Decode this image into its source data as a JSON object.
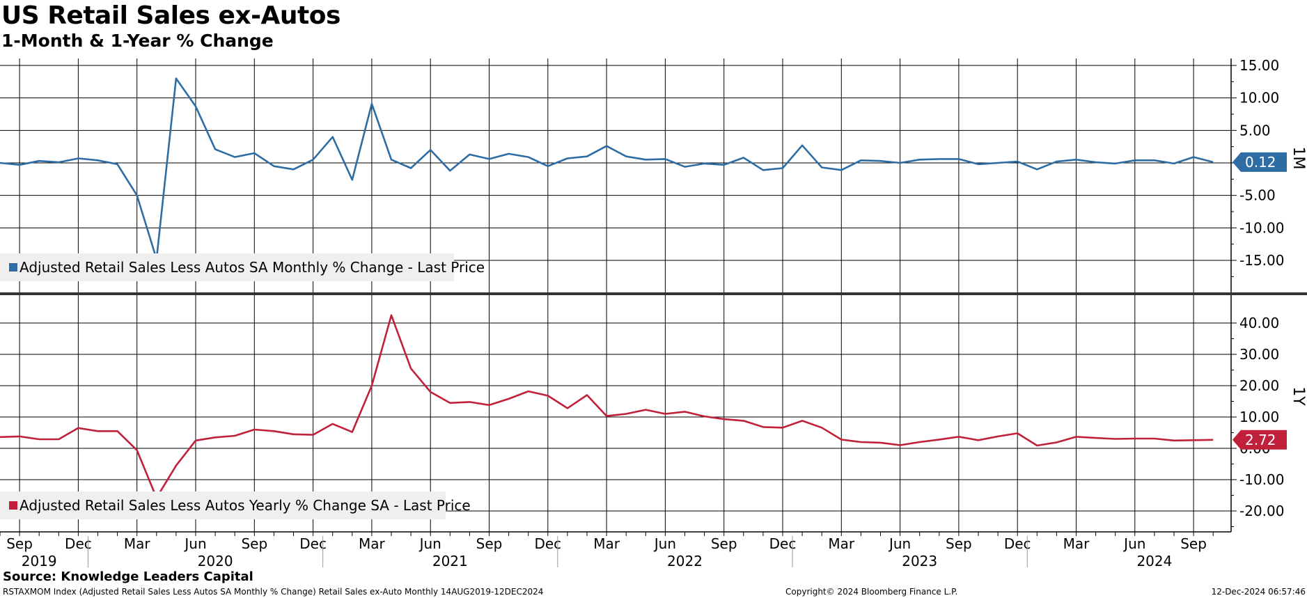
{
  "header": {
    "title": "US Retail Sales ex-Autos",
    "subtitle": "1-Month & 1-Year % Change"
  },
  "footer": {
    "source": "Source: Knowledge Leaders Capital",
    "description": "RSTAXMOM Index (Adjusted Retail Sales Less Autos SA Monthly % Change) Retail Sales ex-Auto  Monthly 14AUG2019-12DEC2024",
    "copyright": "Copyright© 2024 Bloomberg Finance L.P.",
    "timestamp": "12-Dec-2024 06:57:46"
  },
  "colors": {
    "monthly_series": "#2e6da4",
    "yearly_series": "#c0203a",
    "grid": "#000000",
    "legend_bg": "#efefef"
  },
  "chart_data": [
    {
      "type": "line",
      "panel_label": "1M",
      "title": "",
      "ylim": [
        -20,
        15
      ],
      "yticks": [
        "15.00",
        "10.00",
        "5.00",
        "",
        "-5.00",
        "-10.00",
        "-15.00"
      ],
      "ytick_values": [
        15,
        10,
        5,
        0,
        -5,
        -10,
        -15
      ],
      "grid": true,
      "legend_placement": "bottom-left",
      "last_value_label": "0.12",
      "series": [
        {
          "name": "Adjusted Retail Sales Less Autos SA Monthly % Change - Last Price",
          "x_start": "2019-08",
          "values": [
            0.0,
            -0.3,
            0.3,
            0.1,
            0.7,
            0.4,
            -0.2,
            -5.0,
            -14.8,
            13.0,
            8.7,
            2.1,
            0.9,
            1.5,
            -0.5,
            -1.0,
            0.5,
            4.0,
            -2.6,
            9.1,
            0.5,
            -0.8,
            2.0,
            -1.2,
            1.3,
            0.6,
            1.4,
            0.9,
            -0.5,
            0.7,
            1.0,
            2.6,
            1.0,
            0.5,
            0.6,
            -0.6,
            -0.1,
            -0.3,
            0.8,
            -1.1,
            -0.8,
            2.7,
            -0.7,
            -1.1,
            0.4,
            0.3,
            0.0,
            0.5,
            0.6,
            0.6,
            -0.2,
            0.0,
            0.2,
            -1.0,
            0.2,
            0.5,
            0.1,
            -0.1,
            0.4,
            0.4,
            -0.1,
            0.9,
            0.12
          ]
        }
      ]
    },
    {
      "type": "line",
      "panel_label": "1Y",
      "title": "",
      "ylim": [
        -25,
        45
      ],
      "yticks": [
        "40.00",
        "30.00",
        "20.00",
        "10.00",
        "0.00",
        "-10.00",
        "-20.00"
      ],
      "ytick_values": [
        40,
        30,
        20,
        10,
        0,
        -10,
        -20
      ],
      "grid": true,
      "legend_placement": "bottom-left",
      "last_value_label": "2.72",
      "series": [
        {
          "name": "Adjusted Retail Sales Less Autos Yearly % Change SA - Last Price",
          "x_start": "2019-08",
          "values": [
            3.6,
            3.8,
            2.9,
            2.9,
            6.5,
            5.5,
            5.5,
            -0.6,
            -15.8,
            -5.5,
            2.5,
            3.5,
            4.0,
            6.0,
            5.5,
            4.5,
            4.3,
            7.8,
            5.2,
            20.0,
            42.5,
            25.5,
            18.0,
            14.5,
            14.8,
            13.8,
            15.8,
            18.2,
            16.8,
            12.8,
            17.0,
            10.3,
            11.0,
            12.3,
            11.0,
            11.7,
            10.2,
            9.3,
            8.8,
            6.8,
            6.6,
            8.8,
            6.6,
            2.8,
            2.0,
            1.8,
            1.0,
            2.0,
            2.8,
            3.7,
            2.6,
            3.8,
            4.8,
            0.9,
            1.9,
            3.7,
            3.3,
            3.0,
            3.1,
            3.1,
            2.5,
            2.6,
            2.72
          ]
        }
      ]
    }
  ],
  "x_axis": {
    "month_ticks": [
      {
        "label": "Sep",
        "date": "2019-09"
      },
      {
        "label": "Dec",
        "date": "2019-12"
      },
      {
        "label": "Mar",
        "date": "2020-03"
      },
      {
        "label": "Jun",
        "date": "2020-06"
      },
      {
        "label": "Sep",
        "date": "2020-09"
      },
      {
        "label": "Dec",
        "date": "2020-12"
      },
      {
        "label": "Mar",
        "date": "2021-03"
      },
      {
        "label": "Jun",
        "date": "2021-06"
      },
      {
        "label": "Sep",
        "date": "2021-09"
      },
      {
        "label": "Dec",
        "date": "2021-12"
      },
      {
        "label": "Mar",
        "date": "2022-03"
      },
      {
        "label": "Jun",
        "date": "2022-06"
      },
      {
        "label": "Sep",
        "date": "2022-09"
      },
      {
        "label": "Dec",
        "date": "2022-12"
      },
      {
        "label": "Mar",
        "date": "2023-03"
      },
      {
        "label": "Jun",
        "date": "2023-06"
      },
      {
        "label": "Sep",
        "date": "2023-09"
      },
      {
        "label": "Dec",
        "date": "2023-12"
      },
      {
        "label": "Mar",
        "date": "2024-03"
      },
      {
        "label": "Jun",
        "date": "2024-06"
      },
      {
        "label": "Sep",
        "date": "2024-09"
      }
    ],
    "year_labels": [
      {
        "label": "2019",
        "date": "2019-10"
      },
      {
        "label": "2020",
        "date": "2020-07"
      },
      {
        "label": "2021",
        "date": "2021-07"
      },
      {
        "label": "2022",
        "date": "2022-07"
      },
      {
        "label": "2023",
        "date": "2023-07"
      },
      {
        "label": "2024",
        "date": "2024-07"
      }
    ],
    "year_boundaries": [
      "2020-01",
      "2021-01",
      "2022-01",
      "2023-01",
      "2024-01"
    ]
  }
}
